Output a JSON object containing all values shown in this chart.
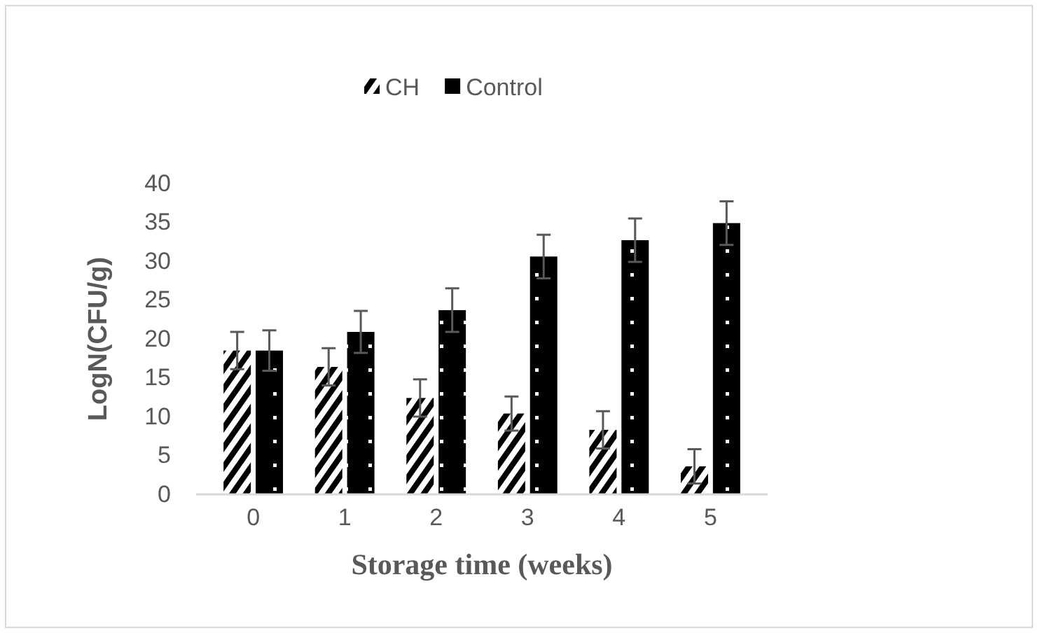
{
  "chart_data": {
    "type": "bar",
    "xlabel": "Storage time (weeks)",
    "ylabel": "LogN(CFU/g)",
    "categories": [
      "0",
      "1",
      "2",
      "3",
      "4",
      "5"
    ],
    "series": [
      {
        "name": "CH",
        "color": "#000000",
        "values": [
          18.5,
          16.4,
          12.4,
          10.4,
          8.3,
          3.6
        ],
        "errors": [
          2.4,
          2.4,
          2.4,
          2.2,
          2.4,
          2.2
        ]
      },
      {
        "name": "Control",
        "color": "#000000",
        "values": [
          18.5,
          20.9,
          23.7,
          30.6,
          32.7,
          34.9
        ],
        "errors": [
          2.6,
          2.7,
          2.8,
          2.8,
          2.8,
          2.8
        ]
      }
    ],
    "ylim": [
      0,
      40
    ],
    "yticks": [
      0,
      5,
      10,
      15,
      20,
      25,
      30,
      35,
      40
    ],
    "grid": false,
    "legend": "top"
  }
}
